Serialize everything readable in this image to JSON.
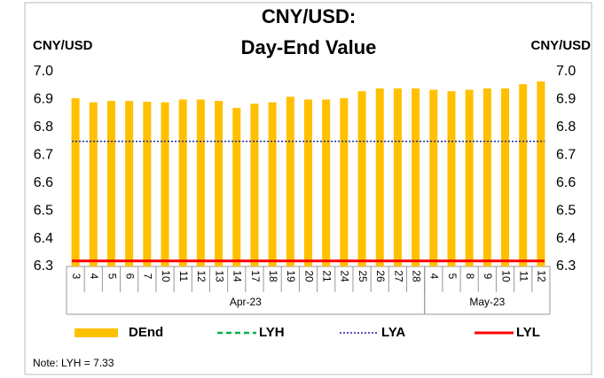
{
  "chart_data": {
    "type": "bar",
    "title": [
      "CNY/USD:",
      "Day-End Value"
    ],
    "y_label": "CNY/USD",
    "y2_label": "CNY/USD",
    "groups": [
      {
        "label": "Apr-23",
        "categories": [
          "3",
          "4",
          "5",
          "6",
          "7",
          "10",
          "11",
          "12",
          "13",
          "14",
          "17",
          "18",
          "19",
          "20",
          "21",
          "24",
          "25",
          "26",
          "27",
          "28"
        ]
      },
      {
        "label": "May-23",
        "categories": [
          "4",
          "5",
          "8",
          "9",
          "10",
          "11",
          "12"
        ]
      }
    ],
    "series": [
      {
        "name": "DEnd",
        "color": "#ffc000",
        "values": [
          6.905,
          6.89,
          6.895,
          6.895,
          6.892,
          6.89,
          6.9,
          6.9,
          6.895,
          6.87,
          6.885,
          6.89,
          6.91,
          6.9,
          6.9,
          6.905,
          6.93,
          6.94,
          6.94,
          6.94,
          6.935,
          6.93,
          6.935,
          6.94,
          6.94,
          6.955,
          6.965
        ]
      }
    ],
    "reference_lines": [
      {
        "name": "LYH",
        "color": "#00b050",
        "style": "dashed",
        "value": 7.33
      },
      {
        "name": "LYA",
        "color": "#1f1fa0",
        "style": "dotted",
        "value": 6.75
      },
      {
        "name": "LYL",
        "color": "#ff0000",
        "style": "solid",
        "value": 6.32
      }
    ],
    "ylim": [
      6.3,
      7.0
    ],
    "yticks": [
      6.3,
      6.4,
      6.5,
      6.6,
      6.7,
      6.8,
      6.9,
      {
        "value": 7.0,
        "label": "7.0"
      }
    ],
    "y2lim": [
      6.3,
      7.0
    ],
    "y2ticks": [
      6.3,
      6.4,
      6.5,
      6.6,
      6.7,
      6.8,
      6.9,
      {
        "value": 7.0,
        "label": "7.0"
      }
    ],
    "note": "Note: LYH = 7.33"
  }
}
